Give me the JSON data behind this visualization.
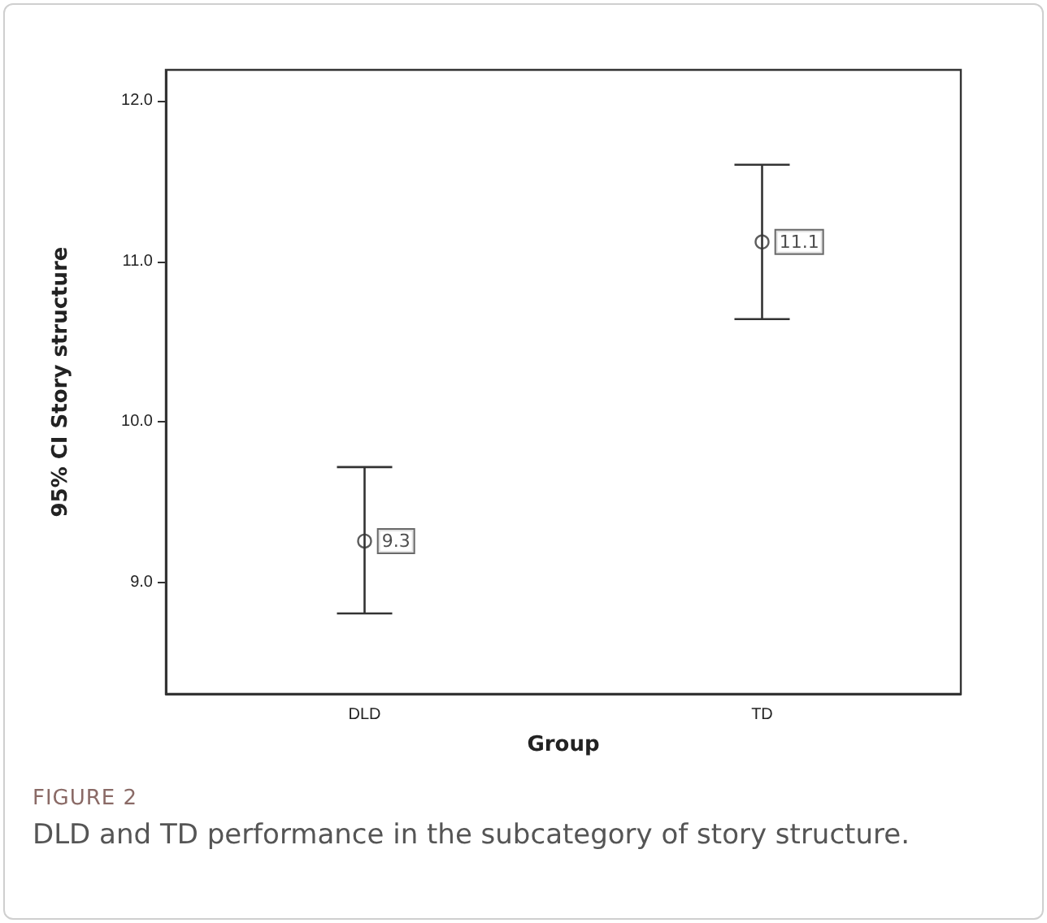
{
  "chart_data": {
    "type": "scatter",
    "xlabel": "Group",
    "ylabel": "95% CI Story structure",
    "annotations": [
      "FIGURE 2",
      "DLD and TD performance in the subcategory of story structure."
    ],
    "categories": [
      "DLD",
      "TD"
    ],
    "series": [
      {
        "color": "#333333",
        "values": [
          9.26,
          11.12
        ],
        "value_labels": [
          "9.3",
          "11.1"
        ],
        "errors": [
          [
            8.81,
            9.72
          ],
          [
            10.64,
            11.6
          ]
        ]
      }
    ],
    "ylim": [
      8.31,
      12.19
    ],
    "yticks": [
      {
        "value": 9,
        "label": "9.0"
      },
      {
        "value": 10,
        "label": "10.0"
      },
      {
        "value": 11,
        "label": "11.0"
      },
      {
        "value": 12,
        "label": "12.0"
      }
    ],
    "marker": "circle",
    "grid": false
  }
}
